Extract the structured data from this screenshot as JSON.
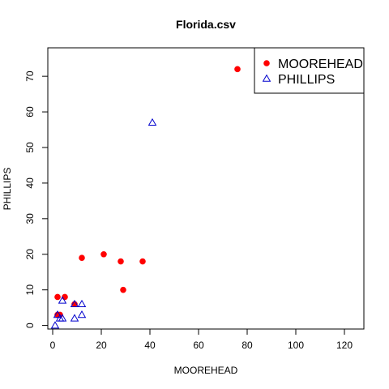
{
  "chart_data": {
    "type": "scatter",
    "title": "Florida.csv",
    "xlabel": "MOOREHEAD",
    "ylabel": "PHILLIPS",
    "xlim": [
      -2,
      128
    ],
    "ylim": [
      -1,
      78
    ],
    "xticks": [
      0,
      20,
      40,
      60,
      80,
      100,
      120
    ],
    "yticks": [
      0,
      10,
      20,
      30,
      40,
      50,
      60,
      70
    ],
    "grid": false,
    "legend_position": "top-right",
    "series": [
      {
        "name": "MOOREHEAD",
        "marker": "filled-circle",
        "color": "#ff0000",
        "points": [
          {
            "x": 76,
            "y": 72
          },
          {
            "x": 21,
            "y": 20
          },
          {
            "x": 12,
            "y": 19
          },
          {
            "x": 28,
            "y": 18
          },
          {
            "x": 37,
            "y": 18
          },
          {
            "x": 29,
            "y": 10
          },
          {
            "x": 2,
            "y": 8
          },
          {
            "x": 5,
            "y": 8
          },
          {
            "x": 9,
            "y": 6
          },
          {
            "x": 2,
            "y": 3
          },
          {
            "x": 3,
            "y": 3
          }
        ]
      },
      {
        "name": "PHILLIPS",
        "marker": "open-triangle",
        "color": "#0000cd",
        "points": [
          {
            "x": 41,
            "y": 57
          },
          {
            "x": 4,
            "y": 7
          },
          {
            "x": 12,
            "y": 6
          },
          {
            "x": 9,
            "y": 6
          },
          {
            "x": 2,
            "y": 3
          },
          {
            "x": 12,
            "y": 3
          },
          {
            "x": 3,
            "y": 2
          },
          {
            "x": 4,
            "y": 2
          },
          {
            "x": 9,
            "y": 2
          },
          {
            "x": 1,
            "y": 0
          }
        ]
      }
    ]
  }
}
